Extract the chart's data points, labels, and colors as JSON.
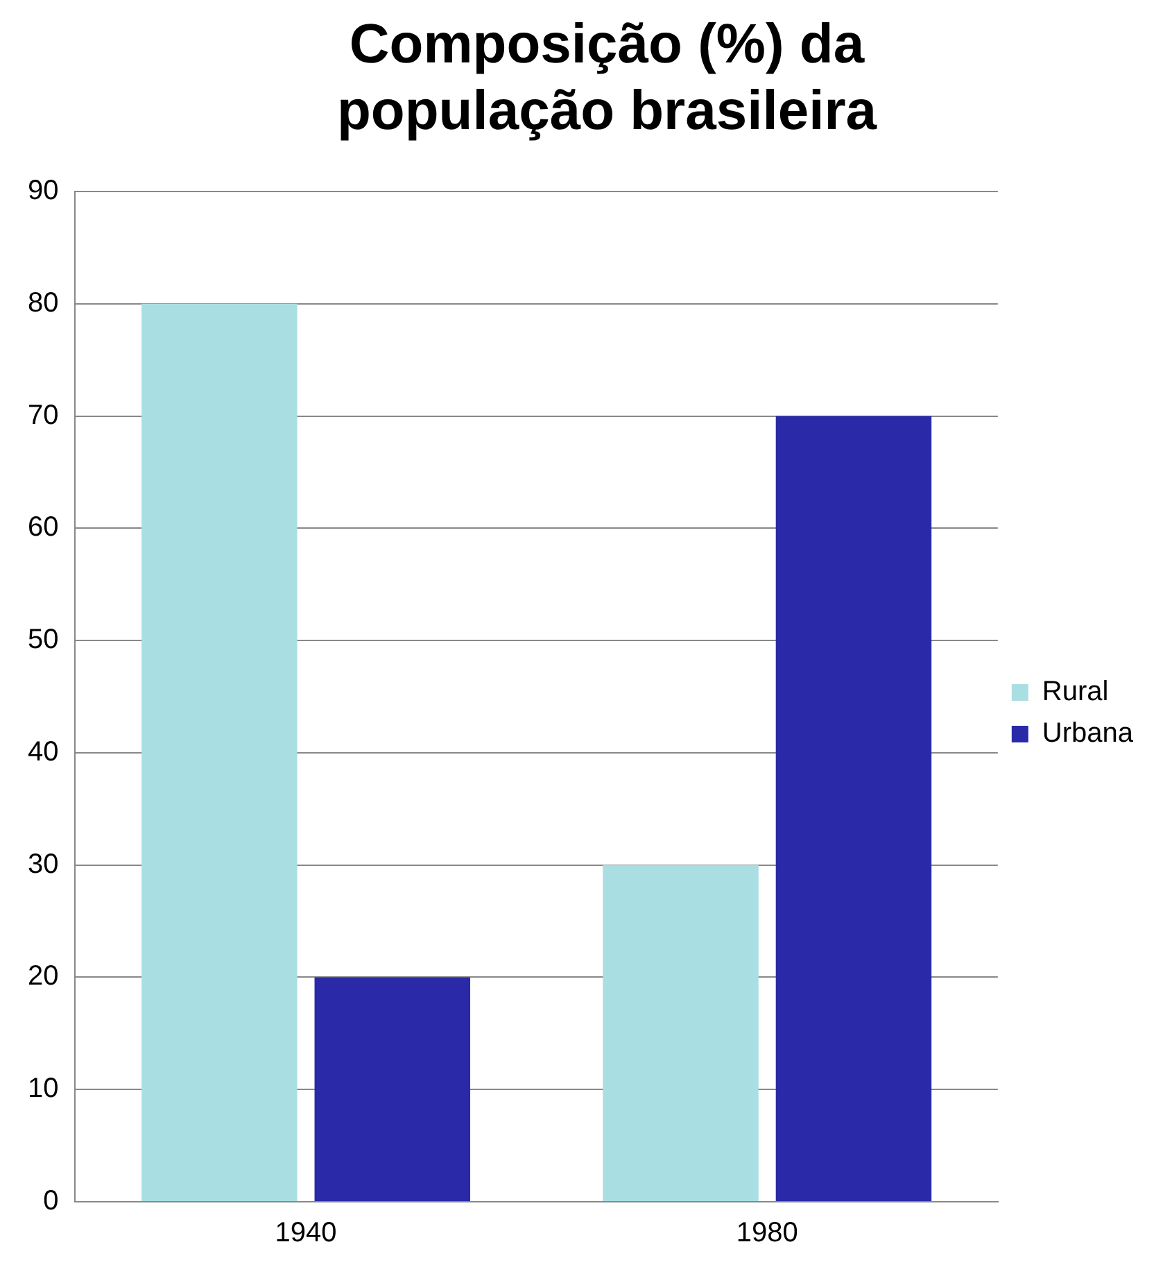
{
  "chart_data": {
    "type": "bar",
    "title": "Composição (%) da população brasileira",
    "categories": [
      "1940",
      "1980"
    ],
    "series": [
      {
        "name": "Rural",
        "color": "#a9dfe2",
        "values": [
          80,
          30
        ]
      },
      {
        "name": "Urbana",
        "color": "#2a2aa8",
        "values": [
          20,
          70
        ]
      }
    ],
    "ylim": [
      0,
      90
    ],
    "yticks": [
      0,
      10,
      20,
      30,
      40,
      50,
      60,
      70,
      80,
      90
    ],
    "grid": "y",
    "legend": "right"
  }
}
